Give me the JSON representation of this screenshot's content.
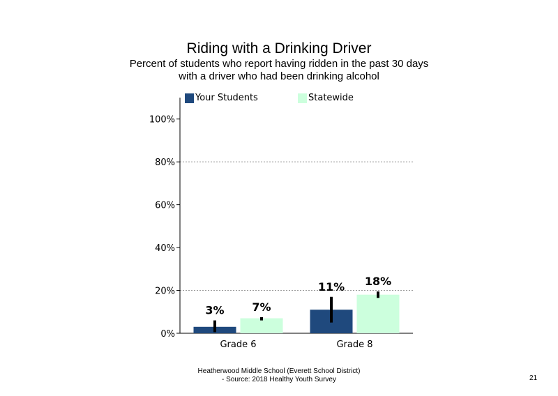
{
  "chart_data": {
    "type": "bar",
    "title": "Riding with a Drinking Driver",
    "subtitle_line1": "Percent of students who report having ridden in the past 30 days",
    "subtitle_line2": "with a driver who had been drinking alcohol",
    "categories": [
      "Grade 6",
      "Grade 8"
    ],
    "series": [
      {
        "name": "Your Students",
        "color": "#1f497d",
        "values": [
          3,
          11
        ],
        "labels": [
          "3%",
          "11%"
        ],
        "error_low": [
          0.5,
          5
        ],
        "error_high": [
          6,
          17
        ]
      },
      {
        "name": "Statewide",
        "color": "#ccffdd",
        "values": [
          7,
          18
        ],
        "labels": [
          "7%",
          "18%"
        ],
        "error_low": [
          6,
          16.5
        ],
        "error_high": [
          7.5,
          19.5
        ]
      }
    ],
    "ylim": [
      0,
      110
    ],
    "yticks": [
      0,
      20,
      40,
      60,
      80,
      100
    ],
    "ytick_labels": [
      "0%",
      "20%",
      "40%",
      "60%",
      "80%",
      "100%"
    ],
    "gridlines": [
      20,
      80
    ],
    "grid_style": "dotted",
    "legend_position": "top"
  },
  "footer": {
    "line1": "Heatherwood Middle School (Everett School District)",
    "line2": "- Source: 2018 Healthy Youth Survey"
  },
  "page_number": "21"
}
